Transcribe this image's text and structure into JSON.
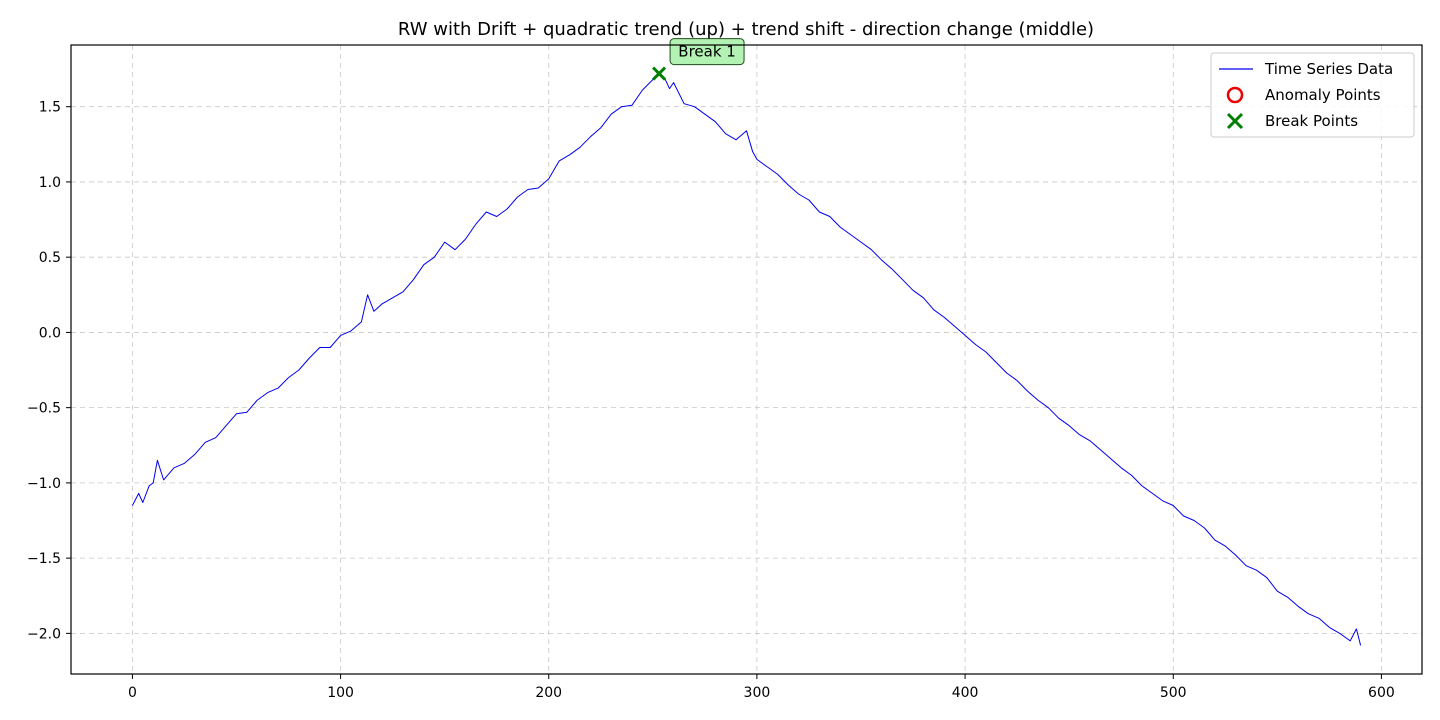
{
  "chart_data": {
    "type": "line",
    "title": "RW with Drift + quadratic trend (up) + trend shift - direction change (middle)",
    "xlabel": "",
    "ylabel": "",
    "xlim": [
      -29.5,
      619.5
    ],
    "ylim": [
      -2.27,
      1.91
    ],
    "x_ticks": [
      0,
      100,
      200,
      300,
      400,
      500,
      600
    ],
    "y_ticks": [
      -2.0,
      -1.5,
      -1.0,
      -0.5,
      0.0,
      0.5,
      1.0,
      1.5
    ],
    "x_tick_labels": [
      "0",
      "100",
      "200",
      "300",
      "400",
      "500",
      "600"
    ],
    "y_tick_labels": [
      "−2.0",
      "−1.5",
      "−1.0",
      "−0.5",
      "0.0",
      "0.5",
      "1.0",
      "1.5"
    ],
    "grid": true,
    "legend_position": "top-right",
    "series": [
      {
        "name": "Time Series Data",
        "color": "#0000ee",
        "points": [
          [
            0,
            -1.15
          ],
          [
            3,
            -1.07
          ],
          [
            5,
            -1.13
          ],
          [
            8,
            -1.02
          ],
          [
            10,
            -1.0
          ],
          [
            12,
            -0.85
          ],
          [
            15,
            -0.98
          ],
          [
            20,
            -0.9
          ],
          [
            25,
            -0.87
          ],
          [
            30,
            -0.81
          ],
          [
            35,
            -0.73
          ],
          [
            40,
            -0.7
          ],
          [
            45,
            -0.62
          ],
          [
            50,
            -0.54
          ],
          [
            55,
            -0.53
          ],
          [
            60,
            -0.45
          ],
          [
            65,
            -0.4
          ],
          [
            70,
            -0.37
          ],
          [
            75,
            -0.3
          ],
          [
            80,
            -0.25
          ],
          [
            85,
            -0.17
          ],
          [
            90,
            -0.1
          ],
          [
            95,
            -0.1
          ],
          [
            100,
            -0.02
          ],
          [
            105,
            0.01
          ],
          [
            110,
            0.07
          ],
          [
            113,
            0.25
          ],
          [
            116,
            0.14
          ],
          [
            120,
            0.19
          ],
          [
            125,
            0.23
          ],
          [
            130,
            0.27
          ],
          [
            135,
            0.35
          ],
          [
            140,
            0.45
          ],
          [
            145,
            0.5
          ],
          [
            150,
            0.6
          ],
          [
            155,
            0.55
          ],
          [
            160,
            0.62
          ],
          [
            165,
            0.72
          ],
          [
            170,
            0.8
          ],
          [
            175,
            0.77
          ],
          [
            180,
            0.82
          ],
          [
            185,
            0.9
          ],
          [
            190,
            0.95
          ],
          [
            195,
            0.96
          ],
          [
            200,
            1.02
          ],
          [
            205,
            1.14
          ],
          [
            210,
            1.18
          ],
          [
            215,
            1.23
          ],
          [
            220,
            1.3
          ],
          [
            225,
            1.36
          ],
          [
            230,
            1.45
          ],
          [
            235,
            1.5
          ],
          [
            240,
            1.51
          ],
          [
            245,
            1.61
          ],
          [
            250,
            1.68
          ],
          [
            253,
            1.72
          ],
          [
            256,
            1.68
          ],
          [
            258,
            1.62
          ],
          [
            260,
            1.66
          ],
          [
            265,
            1.52
          ],
          [
            270,
            1.5
          ],
          [
            275,
            1.45
          ],
          [
            280,
            1.4
          ],
          [
            285,
            1.32
          ],
          [
            290,
            1.28
          ],
          [
            295,
            1.34
          ],
          [
            298,
            1.2
          ],
          [
            300,
            1.15
          ],
          [
            305,
            1.1
          ],
          [
            310,
            1.05
          ],
          [
            315,
            0.98
          ],
          [
            320,
            0.92
          ],
          [
            325,
            0.88
          ],
          [
            330,
            0.8
          ],
          [
            335,
            0.77
          ],
          [
            340,
            0.7
          ],
          [
            345,
            0.65
          ],
          [
            350,
            0.6
          ],
          [
            355,
            0.55
          ],
          [
            360,
            0.48
          ],
          [
            365,
            0.42
          ],
          [
            370,
            0.35
          ],
          [
            375,
            0.28
          ],
          [
            380,
            0.23
          ],
          [
            385,
            0.15
          ],
          [
            390,
            0.1
          ],
          [
            395,
            0.04
          ],
          [
            400,
            -0.02
          ],
          [
            405,
            -0.08
          ],
          [
            410,
            -0.13
          ],
          [
            415,
            -0.2
          ],
          [
            420,
            -0.27
          ],
          [
            425,
            -0.32
          ],
          [
            430,
            -0.39
          ],
          [
            435,
            -0.45
          ],
          [
            440,
            -0.5
          ],
          [
            445,
            -0.57
          ],
          [
            450,
            -0.62
          ],
          [
            455,
            -0.68
          ],
          [
            460,
            -0.72
          ],
          [
            465,
            -0.78
          ],
          [
            470,
            -0.84
          ],
          [
            475,
            -0.9
          ],
          [
            480,
            -0.95
          ],
          [
            485,
            -1.02
          ],
          [
            490,
            -1.07
          ],
          [
            495,
            -1.12
          ],
          [
            500,
            -1.15
          ],
          [
            505,
            -1.22
          ],
          [
            510,
            -1.25
          ],
          [
            515,
            -1.3
          ],
          [
            520,
            -1.38
          ],
          [
            525,
            -1.42
          ],
          [
            530,
            -1.48
          ],
          [
            535,
            -1.55
          ],
          [
            540,
            -1.58
          ],
          [
            545,
            -1.63
          ],
          [
            550,
            -1.72
          ],
          [
            555,
            -1.76
          ],
          [
            560,
            -1.82
          ],
          [
            565,
            -1.87
          ],
          [
            570,
            -1.9
          ],
          [
            575,
            -1.96
          ],
          [
            580,
            -2.0
          ],
          [
            585,
            -2.05
          ],
          [
            588,
            -1.97
          ],
          [
            590,
            -2.08
          ]
        ]
      }
    ],
    "break_points": [
      {
        "x": 253,
        "y": 1.72,
        "label": "Break 1"
      }
    ],
    "anomaly_points": [],
    "legend": [
      {
        "label": "Time Series Data",
        "kind": "line",
        "color": "#0000ee"
      },
      {
        "label": "Anomaly Points",
        "kind": "circle",
        "color": "#ee0000"
      },
      {
        "label": "Break Points",
        "kind": "cross",
        "color": "#008000"
      }
    ]
  }
}
